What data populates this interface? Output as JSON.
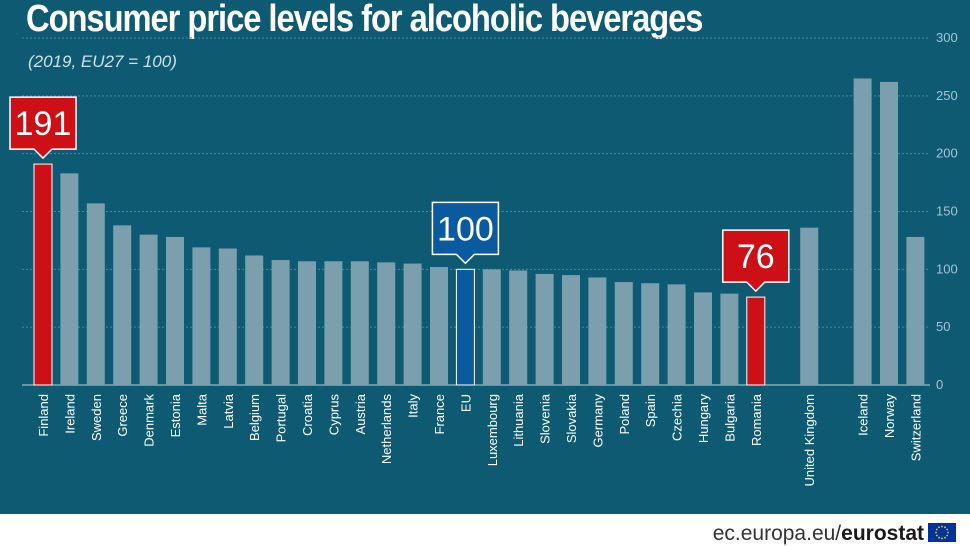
{
  "title": "Consumer price levels for alcoholic beverages",
  "subtitle": "(2019, EU27 = 100)",
  "footer": {
    "site": "ec.europa.eu/",
    "brand": "eurostat"
  },
  "colors": {
    "background": "#0e5a73",
    "bar": "#7b9fad",
    "highlight": "#cc1016",
    "eu": "#0a5aa0",
    "text": "#ffffff",
    "axis": "#a6c4cf"
  },
  "chart_data": {
    "type": "bar",
    "title": "Consumer price levels for alcoholic beverages",
    "subtitle": "(2019, EU27 = 100)",
    "xlabel": "",
    "ylabel": "",
    "ylim": [
      0,
      300
    ],
    "yticks": [
      0,
      50,
      100,
      150,
      200,
      250,
      300
    ],
    "grid": true,
    "categories": [
      "Finland",
      "Ireland",
      "Sweden",
      "Greece",
      "Denmark",
      "Estonia",
      "Malta",
      "Latvia",
      "Belgium",
      "Portugal",
      "Croatia",
      "Cyprus",
      "Austria",
      "Netherlands",
      "Italy",
      "France",
      "EU",
      "Luxembourg",
      "Lithuania",
      "Slovenia",
      "Slovakia",
      "Germany",
      "Poland",
      "Spain",
      "Czechia",
      "Hungary",
      "Bulgaria",
      "Romania",
      "United Kingdom",
      "Iceland",
      "Norway",
      "Switzerland"
    ],
    "groups": [
      28,
      1,
      3
    ],
    "values": [
      191,
      183,
      157,
      138,
      130,
      128,
      119,
      118,
      112,
      108,
      107,
      107,
      107,
      106,
      105,
      102,
      100,
      100,
      99,
      96,
      95,
      93,
      89,
      88,
      87,
      80,
      79,
      76,
      136,
      265,
      262,
      128
    ],
    "highlight": [
      "Finland",
      "Romania"
    ],
    "eu_bar": "EU",
    "annotations": [
      {
        "category": "Finland",
        "text": "191",
        "style": "red"
      },
      {
        "category": "EU",
        "text": "100",
        "style": "blue"
      },
      {
        "category": "Romania",
        "text": "76",
        "style": "red"
      }
    ]
  }
}
